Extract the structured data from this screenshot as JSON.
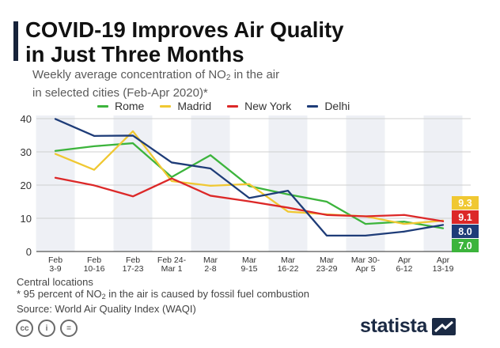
{
  "header": {
    "title_line1": "COVID-19 Improves Air Quality",
    "title_line2": "in Just Three Months",
    "subtitle_line1_pre": "Weekly average concentration of NO",
    "subtitle_sub": "2",
    "subtitle_line1_post": " in the air",
    "subtitle_line2": "in selected cities (Feb-Apr 2020)*"
  },
  "chart_data": {
    "type": "line",
    "title": "COVID-19 Improves Air Quality in Just Three Months",
    "ylim": [
      0,
      40
    ],
    "yticks": [
      "0",
      "10",
      "20",
      "30",
      "40"
    ],
    "grid": true,
    "legend_position": "top",
    "categories": [
      [
        "Feb",
        "3-9"
      ],
      [
        "Feb",
        "10-16"
      ],
      [
        "Feb",
        "17-23"
      ],
      [
        "Feb 24-",
        "Mar 1"
      ],
      [
        "Mar",
        "2-8"
      ],
      [
        "Mar",
        "9-15"
      ],
      [
        "Mar",
        "16-22"
      ],
      [
        "Mar",
        "23-29"
      ],
      [
        "Mar 30-",
        "Apr 5"
      ],
      [
        "Apr",
        "6-12"
      ],
      [
        "Apr",
        "13-19"
      ]
    ],
    "series": [
      {
        "name": "Rome",
        "color": "#3cb43c",
        "values": [
          30.3,
          31.7,
          32.6,
          22.4,
          29.0,
          19.7,
          17.2,
          15.0,
          8.3,
          9.0,
          7.0
        ],
        "end_label": "7.0"
      },
      {
        "name": "Madrid",
        "color": "#f0c832",
        "values": [
          29.4,
          24.6,
          36.2,
          21.2,
          19.8,
          20.3,
          12.0,
          11.2,
          10.6,
          8.3,
          9.3
        ],
        "end_label": "9.3"
      },
      {
        "name": "New York",
        "color": "#dc2828",
        "values": [
          22.2,
          19.9,
          16.6,
          22.0,
          16.8,
          15.1,
          13.2,
          11.0,
          10.6,
          11.0,
          9.1
        ],
        "end_label": "9.1"
      },
      {
        "name": "Delhi",
        "color": "#1e3c78",
        "values": [
          39.9,
          34.8,
          34.9,
          26.8,
          25.0,
          16.1,
          18.3,
          4.8,
          4.8,
          6.0,
          8.0
        ],
        "end_label": "8.0"
      }
    ]
  },
  "notes": {
    "line1": "Central locations",
    "line2_pre": "* 95 percent of NO",
    "line2_sub": "2",
    "line2_post": " in the air is caused by fossil fuel combustion",
    "line3": "Source: World Air Quality Index (WAQI)"
  },
  "footer": {
    "icons": [
      "cc-icon",
      "attribution-icon",
      "no-derivatives-icon"
    ],
    "cc_text": "cc",
    "by_text": "i",
    "nd_text": "=",
    "brand": "statista"
  }
}
